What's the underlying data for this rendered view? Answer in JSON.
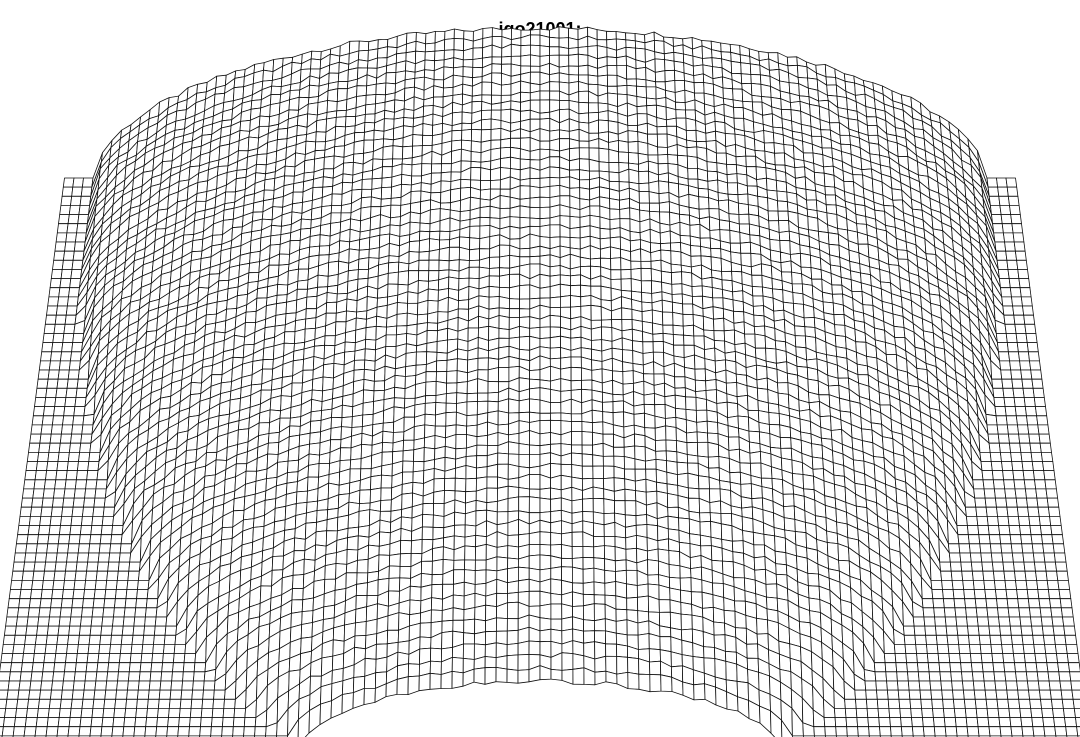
{
  "title": "jgo21001:"
}
